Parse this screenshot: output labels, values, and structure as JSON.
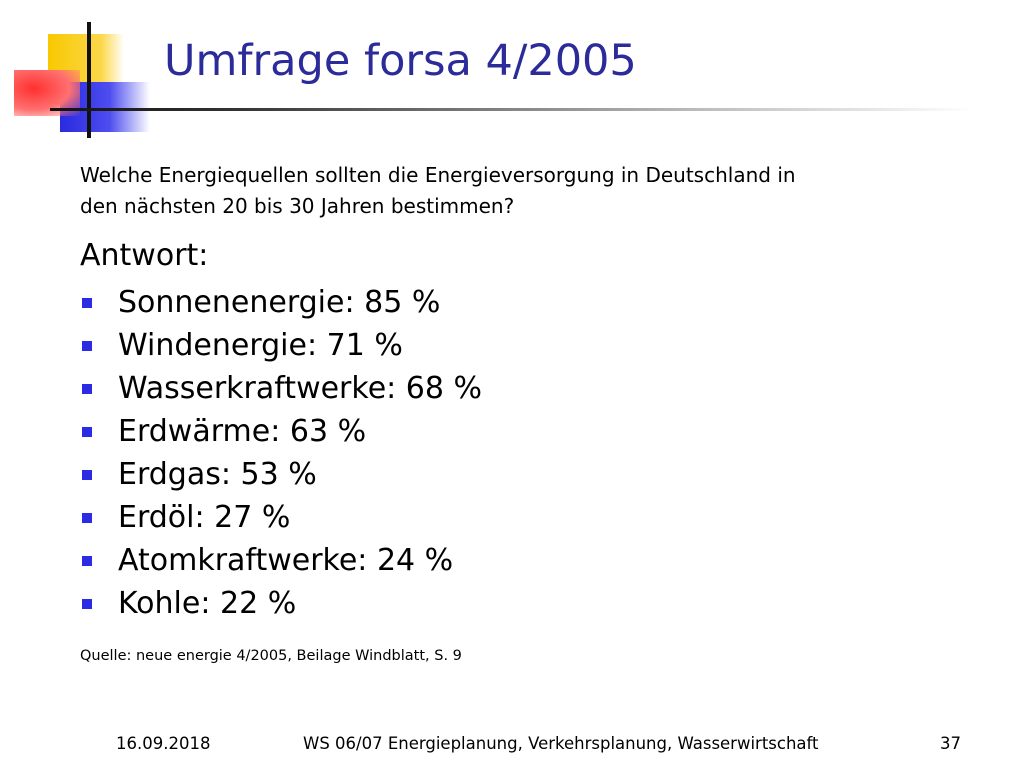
{
  "slide": {
    "title": "Umfrage forsa 4/2005",
    "question": "Welche Energiequellen sollten die Energieversorgung in Deutschland in den nächsten 20 bis 30 Jahren bestimmen?",
    "answer_heading": "Antwort:",
    "answers": [
      "Sonnenenergie: 85 %",
      "Windenergie: 71 %",
      "Wasserkraftwerke: 68 %",
      "Erdwärme: 63 %",
      "Erdgas: 53 %",
      "Erdöl: 27 %",
      "Atomkraftwerke: 24 %",
      "Kohle: 22 %"
    ],
    "source": "Quelle: neue energie 4/2005, Beilage Windblatt, S. 9"
  },
  "footer": {
    "date": "16.09.2018",
    "course": "WS 06/07 Energieplanung, Verkehrsplanung, Wasserwirtschaft",
    "page": "37"
  },
  "colors": {
    "title": "#2b2b9a",
    "bullet": "#2b2be6",
    "deco_yellow": "#f8c800",
    "deco_blue": "#2a2ae0",
    "deco_red": "#ff3030"
  }
}
